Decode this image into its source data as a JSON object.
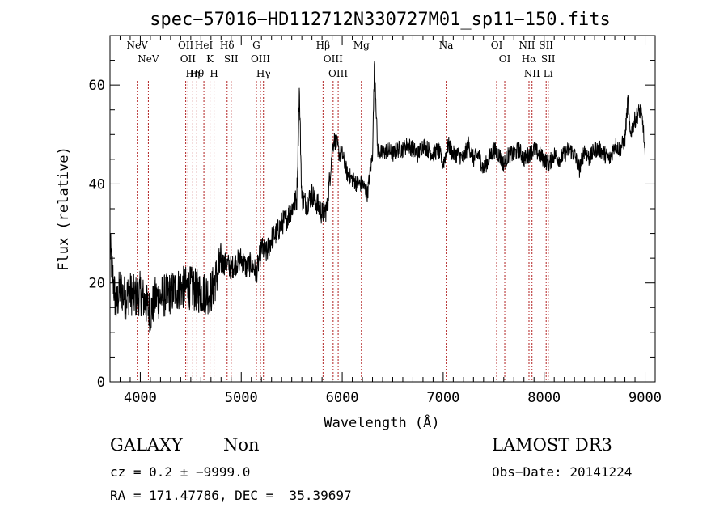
{
  "chart_data": {
    "type": "line",
    "title": "spec−57016−HD112712N330727M01_sp11−150.fits",
    "xlabel": "Wavelength (Å)",
    "ylabel": "Flux (relative)",
    "xlim": [
      3700,
      9100
    ],
    "ylim": [
      0,
      70
    ],
    "xticks": [
      4000,
      5000,
      6000,
      7000,
      8000,
      9000
    ],
    "yticks": [
      0,
      20,
      40,
      60
    ],
    "series": [
      {
        "name": "spectrum",
        "x": [
          3700,
          3760,
          3800,
          3850,
          3900,
          3950,
          4000,
          4050,
          4100,
          4150,
          4200,
          4300,
          4400,
          4500,
          4600,
          4700,
          4750,
          4800,
          4850,
          4900,
          4950,
          5000,
          5050,
          5100,
          5150,
          5200,
          5250,
          5300,
          5350,
          5400,
          5450,
          5500,
          5550,
          5575,
          5600,
          5650,
          5700,
          5750,
          5800,
          5850,
          5880,
          5900,
          5920,
          5950,
          5970,
          6000,
          6050,
          6100,
          6150,
          6200,
          6250,
          6300,
          6320,
          6350,
          6400,
          6450,
          6500,
          6550,
          6600,
          6650,
          6700,
          6750,
          6800,
          6850,
          6900,
          6950,
          7000,
          7050,
          7100,
          7150,
          7200,
          7250,
          7300,
          7350,
          7400,
          7450,
          7500,
          7550,
          7600,
          7650,
          7700,
          7750,
          7800,
          7850,
          7900,
          7950,
          8000,
          8050,
          8100,
          8150,
          8200,
          8250,
          8300,
          8350,
          8400,
          8450,
          8500,
          8550,
          8600,
          8650,
          8700,
          8750,
          8800,
          8830,
          8850,
          8900,
          8950,
          8980,
          9000
        ],
        "y": [
          27,
          15,
          19,
          17,
          18,
          17,
          18,
          16,
          14,
          17,
          17,
          18,
          19,
          19,
          18,
          18,
          21,
          24,
          24,
          23,
          24,
          25,
          23,
          24,
          22,
          27,
          26,
          29,
          30,
          32,
          33,
          35,
          37,
          59,
          37,
          36,
          38,
          36,
          34,
          35,
          42,
          47,
          49,
          48,
          46,
          46,
          42,
          41,
          40,
          40,
          38,
          46,
          65,
          47,
          46,
          47,
          46,
          47,
          47,
          48,
          47,
          46,
          48,
          47,
          46,
          47,
          44,
          48,
          46,
          46,
          45,
          48,
          45,
          46,
          43,
          45,
          47,
          46,
          44,
          46,
          46,
          47,
          45,
          46,
          47,
          46,
          45,
          44,
          46,
          45,
          46,
          47,
          46,
          43,
          47,
          45,
          47,
          47,
          46,
          45,
          48,
          47,
          49,
          57,
          50,
          53,
          55,
          52,
          45
        ]
      }
    ],
    "annotations": [
      {
        "label": "NeV",
        "x": 3970
      },
      {
        "label": "NeV",
        "x": 4080
      },
      {
        "label": "OII",
        "x": 4450
      },
      {
        "label": "OII",
        "x": 4472
      },
      {
        "label": "Hη",
        "x": 4520
      },
      {
        "label": "Hθ",
        "x": 4560
      },
      {
        "label": "HeI",
        "x": 4630
      },
      {
        "label": "K",
        "x": 4690
      },
      {
        "label": "H",
        "x": 4730
      },
      {
        "label": "Hδ",
        "x": 4860
      },
      {
        "label": "SII",
        "x": 4900
      },
      {
        "label": "G",
        "x": 5150
      },
      {
        "label": "OIII",
        "x": 5190
      },
      {
        "label": "Hγ",
        "x": 5220
      },
      {
        "label": "Hβ",
        "x": 5810
      },
      {
        "label": "OIII",
        "x": 5910
      },
      {
        "label": "OIII",
        "x": 5960
      },
      {
        "label": "Mg",
        "x": 6190
      },
      {
        "label": "Na",
        "x": 7030
      },
      {
        "label": "OI",
        "x": 7530
      },
      {
        "label": "OI",
        "x": 7610
      },
      {
        "label": "NII",
        "x": 7830
      },
      {
        "label": "Hα",
        "x": 7850
      },
      {
        "label": "NII",
        "x": 7880
      },
      {
        "label": "SII",
        "x": 8020
      },
      {
        "label": "SII",
        "x": 8040
      },
      {
        "label": "Li",
        "x": 8040
      }
    ],
    "grid": false,
    "line_color": "#000000",
    "marker_color": "#b22222"
  },
  "info": {
    "class_label": "GALAXY",
    "subclass_label": "Non",
    "survey": "LAMOST DR3",
    "redshift_line": "cz = 0.2 ± −9999.0",
    "obs_date": "Obs−Date: 20141224",
    "coords": "RA = 171.47786, DEC =  35.39697"
  }
}
